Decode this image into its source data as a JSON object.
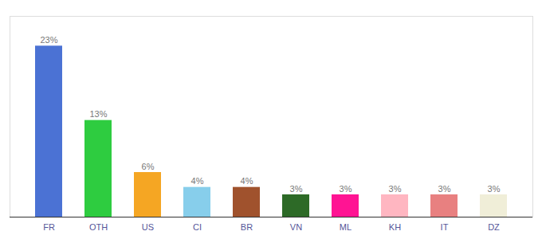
{
  "chart_data": {
    "type": "bar",
    "categories": [
      "FR",
      "OTH",
      "US",
      "CI",
      "BR",
      "VN",
      "ML",
      "KH",
      "IT",
      "DZ"
    ],
    "values": [
      23,
      13,
      6,
      4,
      4,
      3,
      3,
      3,
      3,
      3
    ],
    "value_labels": [
      "23%",
      "13%",
      "6%",
      "4%",
      "4%",
      "3%",
      "3%",
      "3%",
      "3%",
      "3%"
    ],
    "colors": [
      "#4b72d4",
      "#2ecc40",
      "#f5a623",
      "#87ceeb",
      "#a0522d",
      "#2d6a27",
      "#ff1493",
      "#ffb6c1",
      "#e88080",
      "#f0eed8"
    ],
    "ylim": [
      0,
      27
    ],
    "data_labels": true,
    "tick_labels": "x",
    "grid": false
  }
}
